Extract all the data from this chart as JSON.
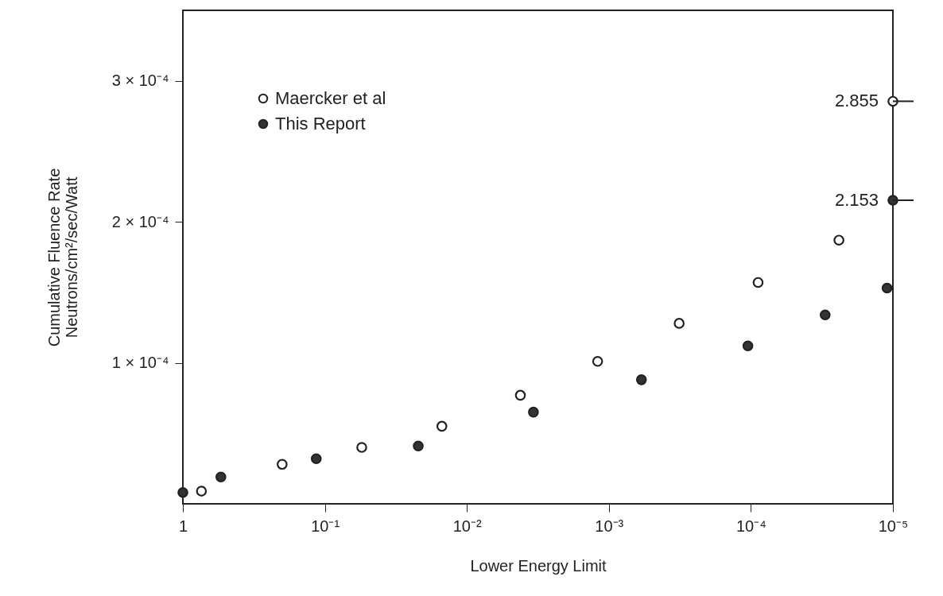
{
  "chart_data": {
    "type": "scatter",
    "xlabel": "Lower Energy Limit",
    "ylabel": "Cumulative Fluence Rate\nNeutrons/cm²/sec/Watt",
    "log": "x",
    "xlim": [
      1,
      1e-05
    ],
    "xticks": [
      {
        "value": 1,
        "label": "1"
      },
      {
        "value": 0.1,
        "label": "10⁻¹"
      },
      {
        "value": 0.01,
        "label": "10⁻²"
      },
      {
        "value": 0.001,
        "label": "10⁻³"
      },
      {
        "value": 0.0001,
        "label": "10⁻⁴"
      },
      {
        "value": 1e-05,
        "label": "10⁻⁵"
      }
    ],
    "ylim": [
      0,
      0.00035
    ],
    "yticks": [
      {
        "value": 0.0001,
        "label": "1 × 10⁻⁴"
      },
      {
        "value": 0.0002,
        "label": "2 × 10⁻⁴"
      },
      {
        "value": 0.0003,
        "label": "3 × 10⁻⁴"
      }
    ],
    "grid": false,
    "legend": "top left",
    "marker": "circle",
    "series": [
      {
        "name": "Maercker et al",
        "color": "#ffffff",
        "x": [
          0.74,
          0.2,
          0.055,
          0.015,
          0.0042,
          0.0012,
          0.00032,
          8.9e-05,
          2.4e-05,
          1e-05
        ],
        "values": [
          9e-06,
          2.8e-05,
          4e-05,
          5.5e-05,
          7.7e-05,
          0.000101,
          0.000128,
          0.000157,
          0.000187,
          0.0002855
        ]
      },
      {
        "name": "This Report",
        "color": "#333333",
        "x": [
          1,
          0.54,
          0.115,
          0.022,
          0.0034,
          0.00059,
          0.000105,
          3e-05,
          1.1e-05,
          1e-05
        ],
        "values": [
          8e-06,
          1.9e-05,
          3.2e-05,
          4.1e-05,
          6.5e-05,
          8.8e-05,
          0.000112,
          0.000134,
          0.000153,
          0.0002153
        ]
      }
    ],
    "annotations": [
      {
        "text": "2.855",
        "x": 1e-05,
        "y": 0.0002855
      },
      {
        "text": "2.153",
        "x": 1e-05,
        "y": 0.0002153
      }
    ]
  }
}
